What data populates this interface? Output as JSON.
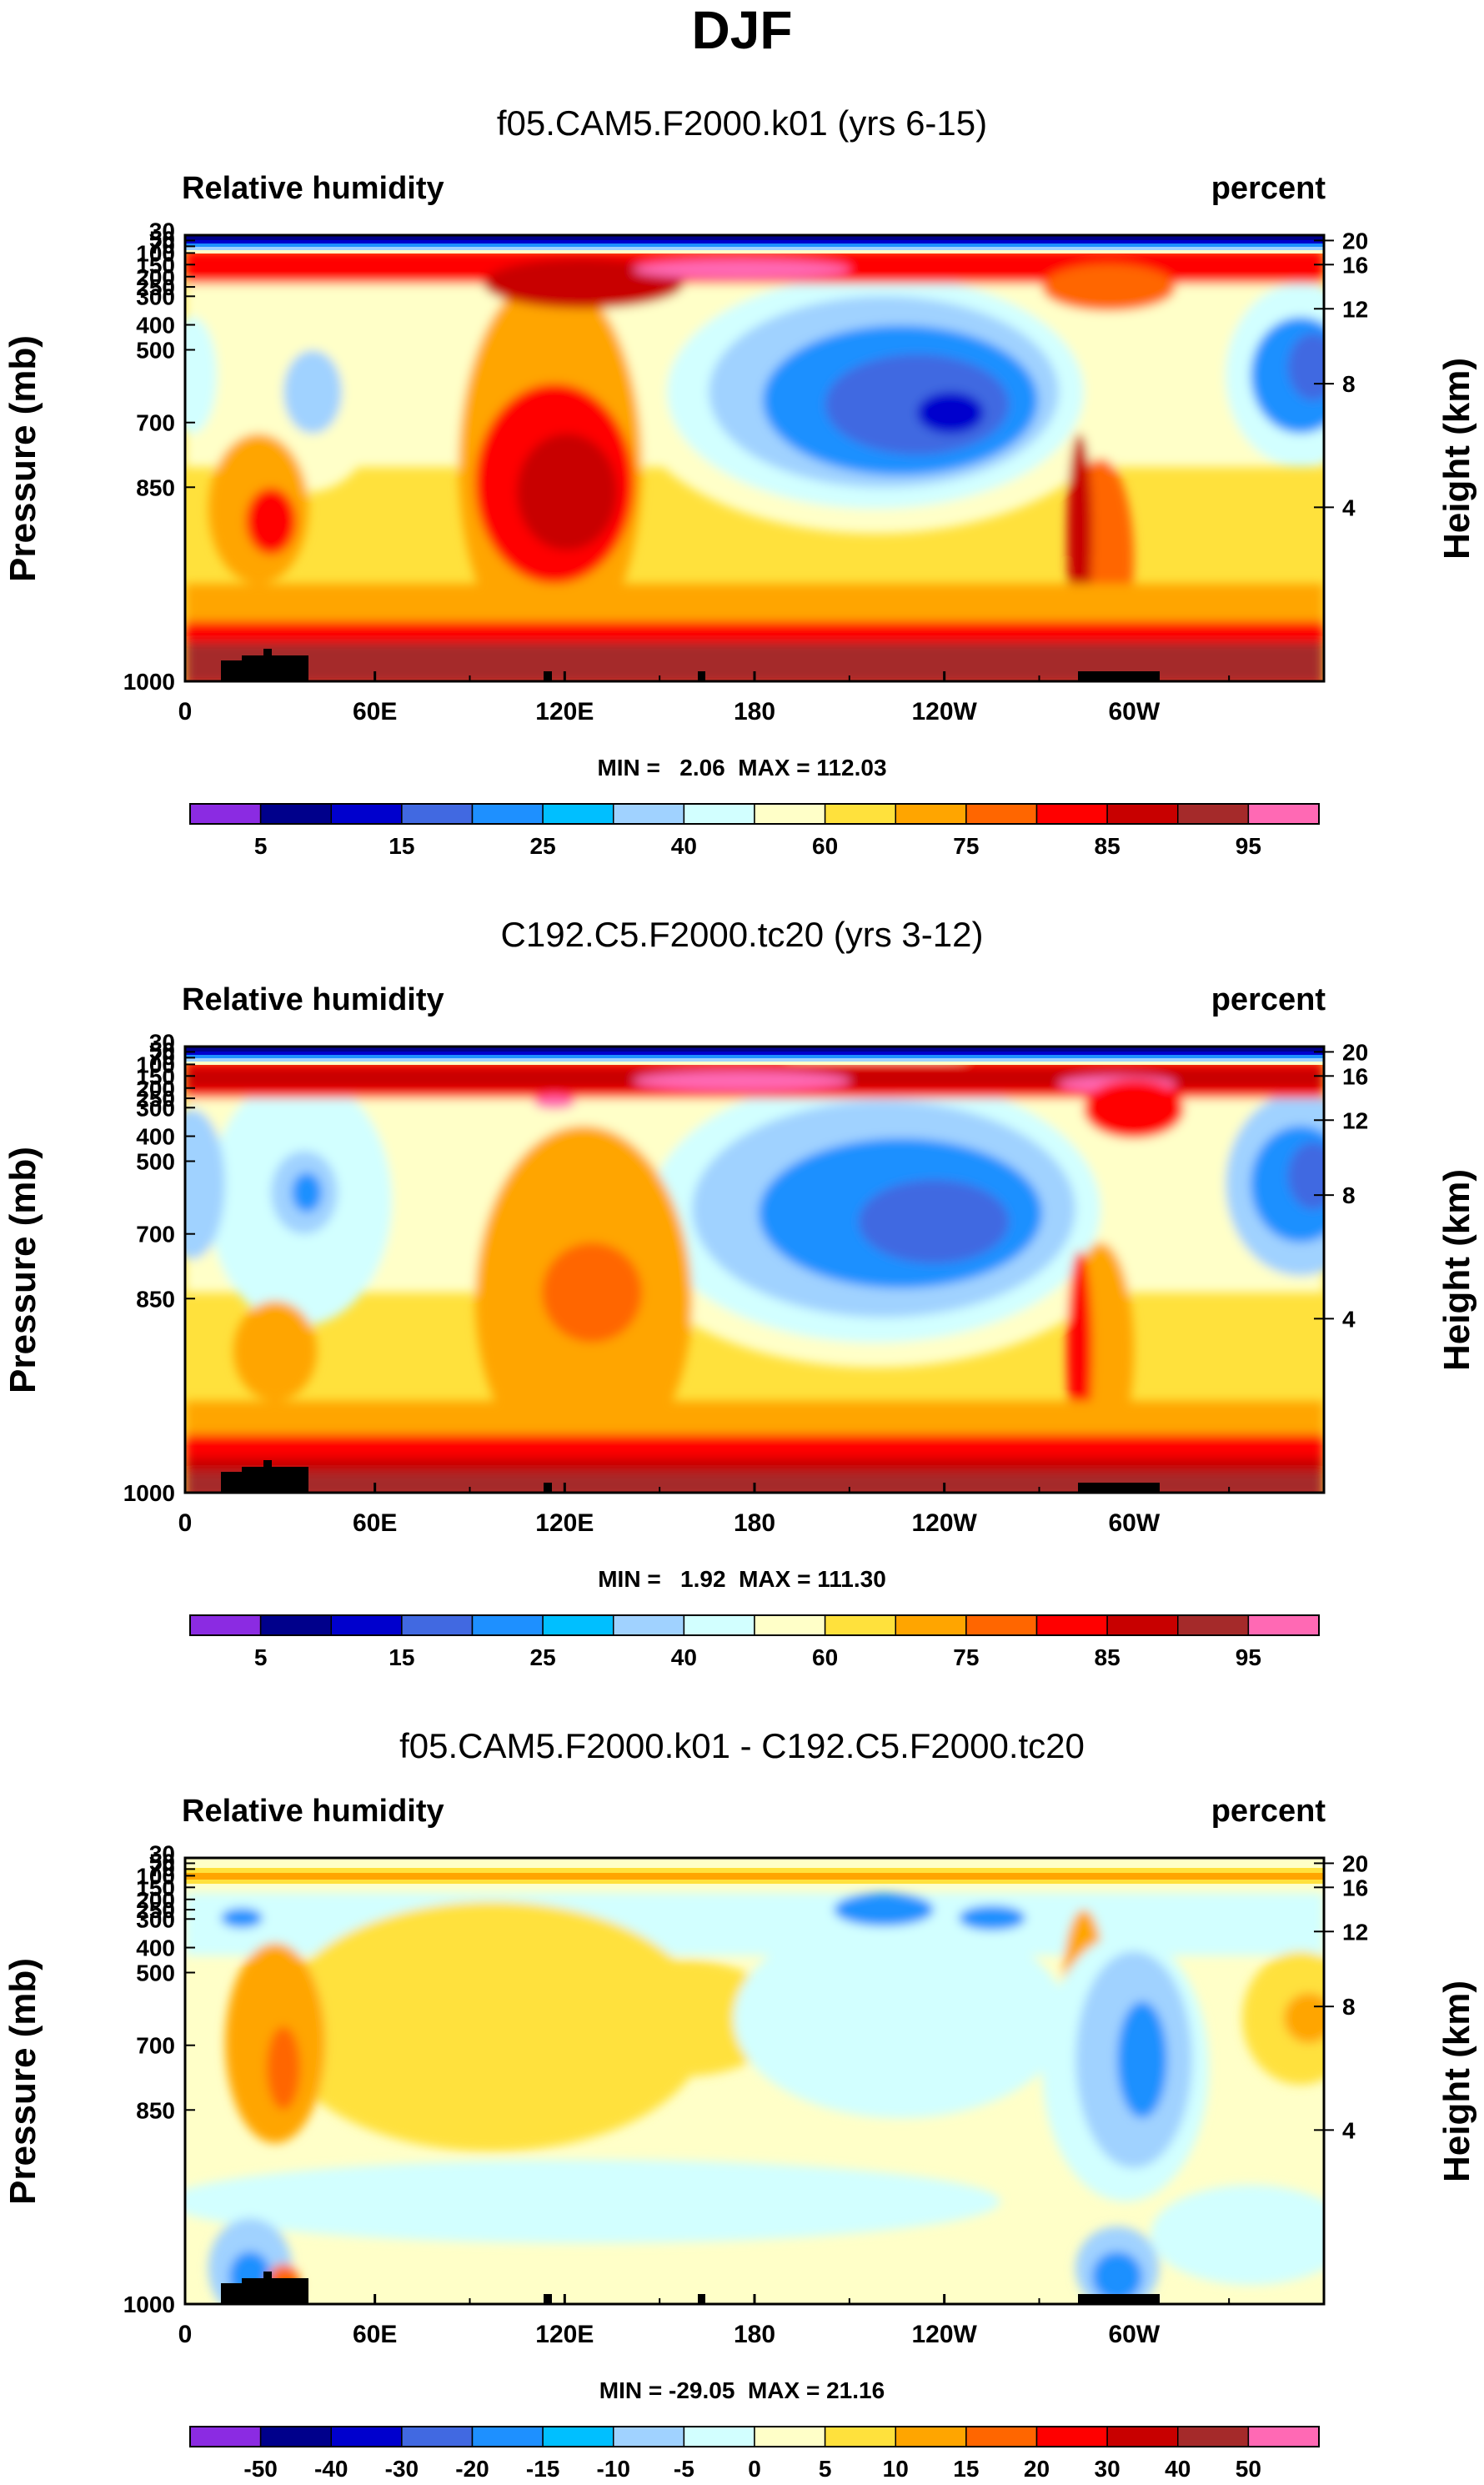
{
  "figure_title": "DJF",
  "colors": {
    "full": [
      "#8b2be2",
      "#00008b",
      "#0000cd",
      "#4169e1",
      "#1e90ff",
      "#00bfff",
      "#a0d2ff",
      "#d2ffff",
      "#ffffc8",
      "#ffe13c",
      "#ffa500",
      "#ff6600",
      "#ff0000",
      "#c80000",
      "#a52a2a",
      "#ff69b4"
    ],
    "diff": [
      "#8b2be2",
      "#00008b",
      "#0000cd",
      "#4169e1",
      "#1e90ff",
      "#00bfff",
      "#a0d2ff",
      "#d2ffff",
      "#ffffc8",
      "#ffe13c",
      "#ffa500",
      "#ff6600",
      "#ff0000",
      "#c80000",
      "#a52a2a",
      "#ff69b4"
    ],
    "land": "#000000"
  },
  "chart_data": [
    {
      "type": "contour",
      "title": "f05.CAM5.F2000.k01 (yrs 6-15)",
      "left_label": "Relative humidity",
      "right_label": "percent",
      "ylabel": "Pressure (mb)",
      "ylabel_right": "Height (km)",
      "x_ticks": [
        "0",
        "60E",
        "120E",
        "180",
        "120W",
        "60W"
      ],
      "y_ticks": [
        "30",
        "50",
        "70",
        "100",
        "150",
        "200",
        "250",
        "300",
        "400",
        "500",
        "700",
        "850",
        "1000"
      ],
      "height_ticks": [
        "20",
        "16",
        "12",
        "8",
        "4"
      ],
      "stats": "MIN =   2.06  MAX = 112.03",
      "colorbar_labels": [
        "5",
        "15",
        "25",
        "40",
        "60",
        "75",
        "85",
        "95"
      ]
    },
    {
      "type": "contour",
      "title": "C192.C5.F2000.tc20 (yrs 3-12)",
      "left_label": "Relative humidity",
      "right_label": "percent",
      "ylabel": "Pressure (mb)",
      "ylabel_right": "Height (km)",
      "x_ticks": [
        "0",
        "60E",
        "120E",
        "180",
        "120W",
        "60W"
      ],
      "y_ticks": [
        "30",
        "50",
        "70",
        "100",
        "150",
        "200",
        "250",
        "300",
        "400",
        "500",
        "700",
        "850",
        "1000"
      ],
      "height_ticks": [
        "20",
        "16",
        "12",
        "8",
        "4"
      ],
      "stats": "MIN =   1.92  MAX = 111.30",
      "colorbar_labels": [
        "5",
        "15",
        "25",
        "40",
        "60",
        "75",
        "85",
        "95"
      ]
    },
    {
      "type": "contour",
      "title": "f05.CAM5.F2000.k01 - C192.C5.F2000.tc20",
      "left_label": "Relative humidity",
      "right_label": "percent",
      "ylabel": "Pressure (mb)",
      "ylabel_right": "Height (km)",
      "x_ticks": [
        "0",
        "60E",
        "120E",
        "180",
        "120W",
        "60W"
      ],
      "y_ticks": [
        "30",
        "50",
        "70",
        "100",
        "150",
        "200",
        "250",
        "300",
        "400",
        "500",
        "700",
        "850",
        "1000"
      ],
      "height_ticks": [
        "20",
        "16",
        "12",
        "8",
        "4"
      ],
      "stats": "MIN = -29.05  MAX = 21.16",
      "colorbar_labels": [
        "-50",
        "-40",
        "-30",
        "-20",
        "-15",
        "-10",
        "-5",
        "0",
        "5",
        "10",
        "15",
        "20",
        "30",
        "40",
        "50"
      ]
    }
  ]
}
